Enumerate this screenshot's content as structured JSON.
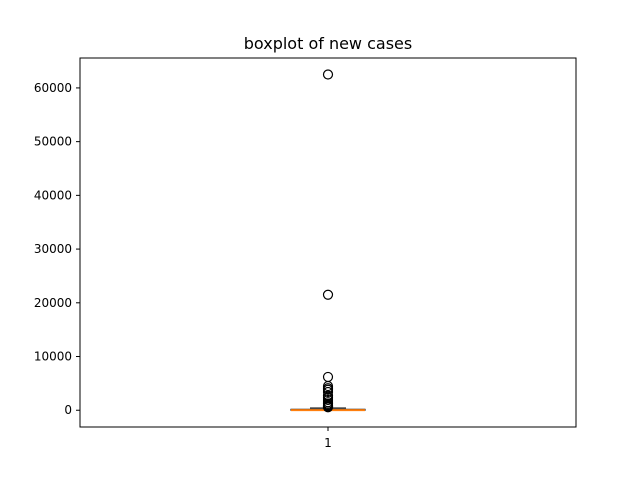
{
  "chart_data": {
    "type": "boxplot",
    "title": "boxplot of new cases",
    "xlabel": "",
    "ylabel": "",
    "categories": [
      "1"
    ],
    "ylim": [
      -3120,
      65570
    ],
    "yticks": [
      0,
      10000,
      20000,
      30000,
      40000,
      50000,
      60000
    ],
    "ytick_labels": [
      "0",
      "10000",
      "20000",
      "30000",
      "40000",
      "50000",
      "60000"
    ],
    "grid": false,
    "box": {
      "q1": 0,
      "median": 30,
      "q3": 180,
      "whisker_low": 0,
      "whisker_high": 420
    },
    "outliers": [
      62500,
      21500,
      6200,
      4500,
      4100,
      3800,
      3400,
      2700,
      2300,
      1900,
      1500,
      1200,
      950,
      800,
      650,
      550
    ],
    "colors": {
      "box": "#000000",
      "median": "#ff7f0e",
      "outlier": "#000000"
    }
  }
}
